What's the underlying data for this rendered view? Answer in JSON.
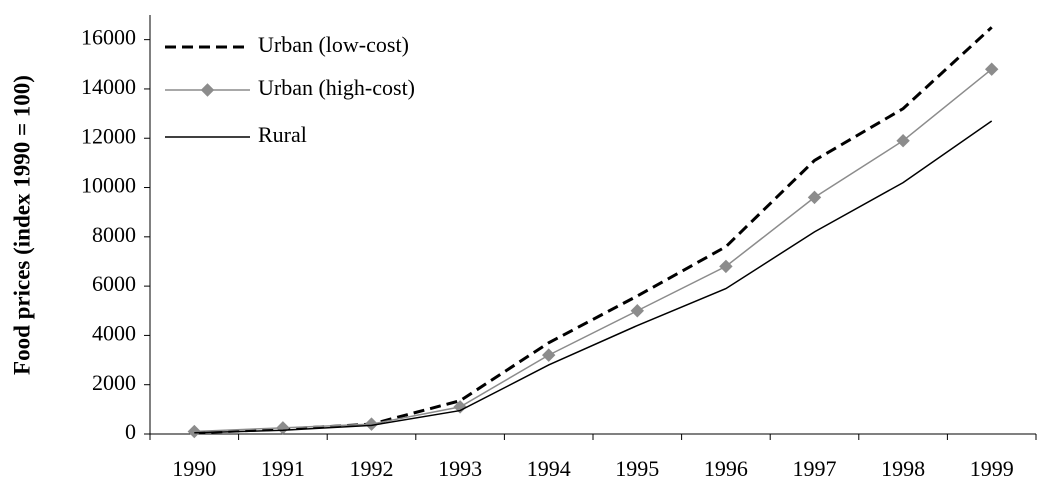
{
  "chart_data": {
    "type": "line",
    "y_label": "Food prices (index 1990 = 100)",
    "categories": [
      "1990",
      "1991",
      "1992",
      "1993",
      "1994",
      "1995",
      "1996",
      "1997",
      "1998",
      "1999"
    ],
    "series": [
      {
        "name": "Urban (low-cost)",
        "color": "#000000",
        "line_style": "dashed",
        "marker": "none",
        "values": [
          50,
          200,
          400,
          1350,
          3700,
          5600,
          7600,
          11100,
          13200,
          16500
        ]
      },
      {
        "name": "Urban (high-cost)",
        "color": "#8c8c8c",
        "line_style": "solid",
        "marker": "diamond",
        "values": [
          100,
          250,
          400,
          1100,
          3200,
          5000,
          6800,
          9600,
          11900,
          14800
        ]
      },
      {
        "name": "Rural",
        "color": "#000000",
        "line_style": "solid",
        "marker": "none",
        "values": [
          50,
          150,
          350,
          950,
          2800,
          4400,
          5900,
          8200,
          10200,
          12700
        ]
      }
    ],
    "ylim": [
      0,
      17000
    ],
    "yticks": [
      0,
      2000,
      4000,
      6000,
      8000,
      10000,
      12000,
      14000,
      16000
    ],
    "grid": false,
    "legend": "top-left"
  }
}
